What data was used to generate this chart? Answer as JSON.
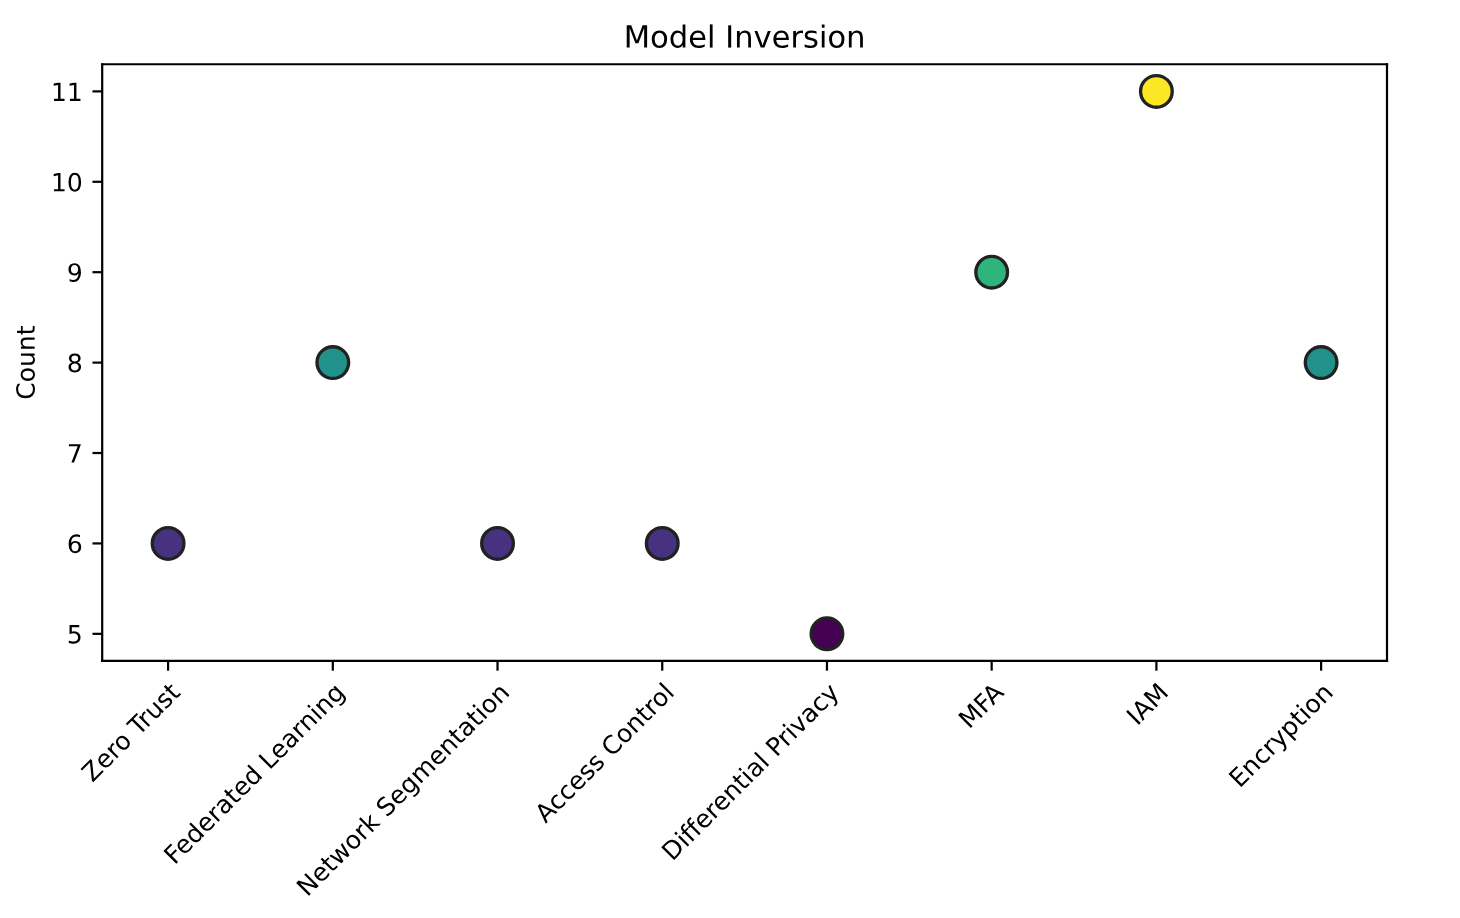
{
  "chart_data": {
    "type": "scatter",
    "title": "Model Inversion",
    "ylabel": "Count",
    "categories": [
      "Zero Trust",
      "Federated Learning",
      "Network Segmentation",
      "Access Control",
      "Differential Privacy",
      "MFA",
      "IAM",
      "Encryption"
    ],
    "values": [
      6,
      8,
      6,
      6,
      5,
      9,
      11,
      8
    ],
    "colors": [
      "#46327e",
      "#21918c",
      "#46327e",
      "#46327e",
      "#440154",
      "#2fb47c",
      "#fde725",
      "#21918c"
    ],
    "ylim": [
      4.7,
      11.3
    ],
    "yticks": [
      5,
      6,
      7,
      8,
      9,
      10,
      11
    ],
    "marker": "circle",
    "grid": false,
    "legend": false
  }
}
